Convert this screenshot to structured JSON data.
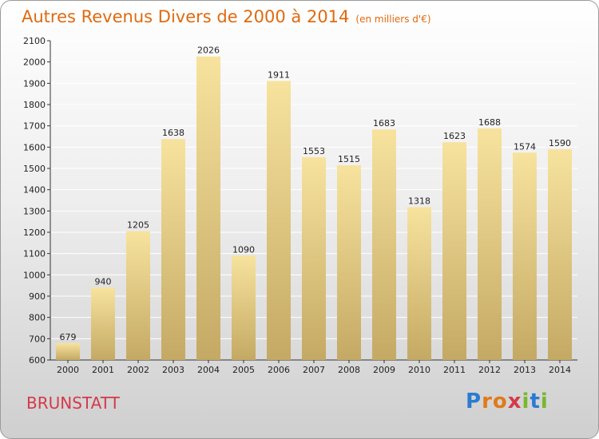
{
  "header": {
    "title": "Autres Revenus Divers de 2000 à 2014",
    "subtitle": "(en milliers d'€)"
  },
  "footer": {
    "place": "BRUNSTATT",
    "logo_text": "Proxiti"
  },
  "colors": {
    "title": "#e06a10",
    "place": "#d43a4a",
    "bar_light": "#f6e29c",
    "bar_dark": "#c6ab66"
  },
  "chart_data": {
    "type": "bar",
    "title": "Autres Revenus Divers de 2000 à 2014",
    "subtitle": "(en milliers d'€)",
    "categories": [
      "2000",
      "2001",
      "2002",
      "2003",
      "2004",
      "2005",
      "2006",
      "2007",
      "2008",
      "2009",
      "2010",
      "2011",
      "2012",
      "2013",
      "2014"
    ],
    "values": [
      679,
      940,
      1205,
      1638,
      2026,
      1090,
      1911,
      1553,
      1515,
      1683,
      1318,
      1623,
      1688,
      1574,
      1590
    ],
    "ylim": [
      600,
      2100
    ],
    "yticks": [
      600,
      700,
      800,
      900,
      1000,
      1100,
      1200,
      1300,
      1400,
      1500,
      1600,
      1700,
      1800,
      1900,
      2000,
      2100
    ],
    "grid": true,
    "data_labels": true
  }
}
